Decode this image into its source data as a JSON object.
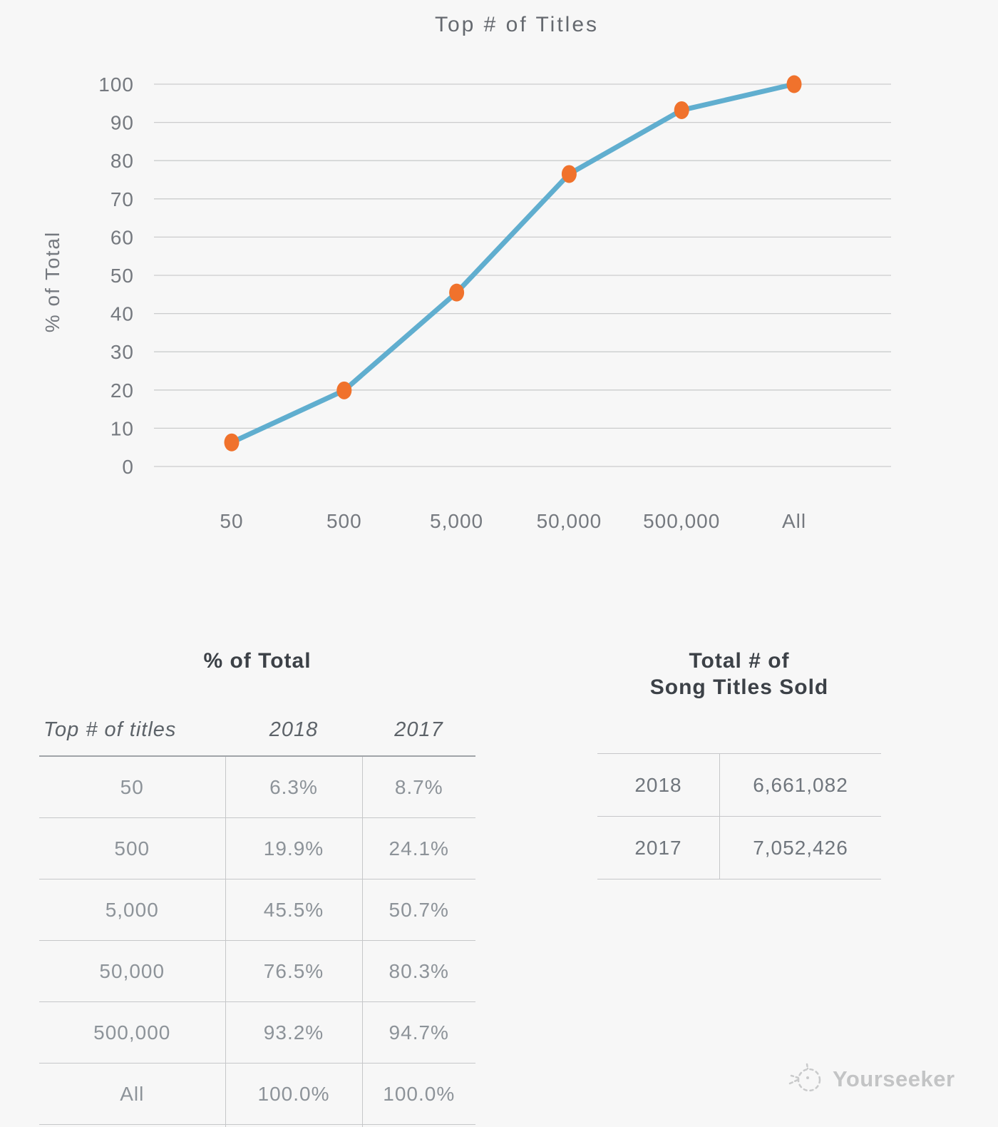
{
  "chart_data": {
    "type": "line",
    "title": "Top # of Titles",
    "xlabel": "",
    "ylabel": "% of Total",
    "categories": [
      "50",
      "500",
      "5,000",
      "50,000",
      "500,000",
      "All"
    ],
    "series": [
      {
        "name": "2018",
        "values": [
          6.3,
          19.9,
          45.5,
          76.5,
          93.2,
          100.0
        ]
      }
    ],
    "ylim": [
      0,
      100
    ],
    "yticks": [
      0,
      10,
      20,
      30,
      40,
      50,
      60,
      70,
      80,
      90,
      100
    ],
    "grid": true,
    "legend": false,
    "line_color": "#60aecf",
    "marker_color": "#f0722c",
    "gridline_color": "#cbcccd"
  },
  "percent_table": {
    "title": "% of Total",
    "columns": [
      "Top # of titles",
      "2018",
      "2017"
    ],
    "rows": [
      [
        "50",
        "6.3%",
        "8.7%"
      ],
      [
        "500",
        "19.9%",
        "24.1%"
      ],
      [
        "5,000",
        "45.5%",
        "50.7%"
      ],
      [
        "50,000",
        "76.5%",
        "80.3%"
      ],
      [
        "500,000",
        "93.2%",
        "94.7%"
      ],
      [
        "All",
        "100.0%",
        "100.0%"
      ]
    ]
  },
  "totals_table": {
    "title_line1": "Total # of",
    "title_line2": "Song Titles Sold",
    "rows": [
      [
        "2018",
        "6,661,082"
      ],
      [
        "2017",
        "7,052,426"
      ]
    ]
  },
  "watermark": {
    "label": "Yourseeker",
    "icon": "sketch-circle-icon",
    "color": "#c3c4c5"
  }
}
